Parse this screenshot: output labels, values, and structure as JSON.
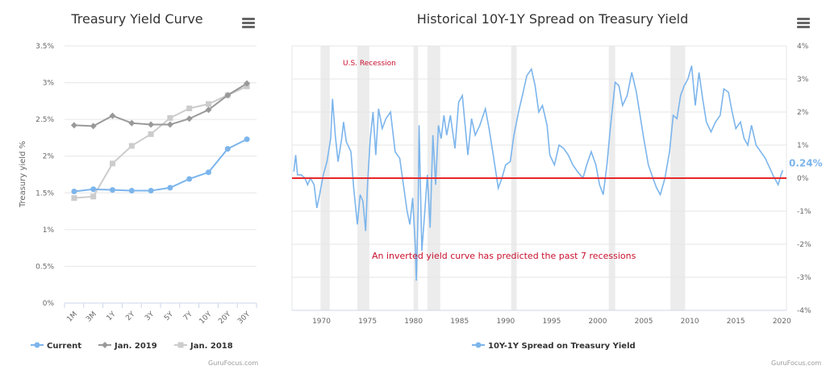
{
  "chart_data": [
    {
      "type": "line",
      "title": "Treasury Yield Curve",
      "ylabel": "Treasury yield %",
      "xlabel": "",
      "ylim": [
        0,
        3.5
      ],
      "yticks": [
        "0%",
        "0.5%",
        "1%",
        "1.5%",
        "2%",
        "2.5%",
        "3%",
        "3.5%"
      ],
      "ytick_values": [
        0,
        0.5,
        1,
        1.5,
        2,
        2.5,
        3,
        3.5
      ],
      "categories": [
        "1M",
        "3M",
        "1Y",
        "2Y",
        "3Y",
        "5Y",
        "7Y",
        "10Y",
        "20Y",
        "30Y"
      ],
      "grid": true,
      "legend": "bottom",
      "series": [
        {
          "name": "Current",
          "color": "#7cb5ec",
          "marker": "circle",
          "values": [
            1.52,
            1.55,
            1.54,
            1.53,
            1.53,
            1.57,
            1.69,
            1.78,
            2.1,
            2.23
          ]
        },
        {
          "name": "Jan. 2019",
          "color": "#999999",
          "marker": "diamond",
          "values": [
            2.42,
            2.41,
            2.55,
            2.45,
            2.43,
            2.43,
            2.51,
            2.63,
            2.83,
            2.99
          ]
        },
        {
          "name": "Jan. 2018",
          "color": "#cccccc",
          "marker": "square",
          "values": [
            1.43,
            1.45,
            1.9,
            2.14,
            2.3,
            2.52,
            2.65,
            2.71,
            2.83,
            2.95
          ]
        }
      ],
      "watermark": "GuruFocus.com"
    },
    {
      "type": "line",
      "title": "Historical 10Y-1Y Spread on Treasury Yield",
      "xlim": [
        1966.8,
        2020.5
      ],
      "ylim": [
        -4,
        4
      ],
      "xticks": [
        1970,
        1975,
        1980,
        1985,
        1990,
        1995,
        2000,
        2005,
        2010,
        2015,
        2020
      ],
      "yticks": [
        "-4%",
        "-3%",
        "-2%",
        "-1%",
        "0%",
        "1%",
        "2%",
        "3%",
        "4%"
      ],
      "ytick_values": [
        -4,
        -3,
        -2,
        -1,
        0,
        1,
        2,
        3,
        4
      ],
      "grid": true,
      "legend": "bottom",
      "last_value_label": "0.24%",
      "recession_label": "U.S. Recession",
      "annotation": "An inverted yield curve has predicted the past 7 recessions",
      "zero_line_color": "#e8262b",
      "recession_color": "#ececec",
      "recessions": [
        [
          1969.9,
          1970.9
        ],
        [
          1973.9,
          1975.2
        ],
        [
          1980.0,
          1980.5
        ],
        [
          1981.5,
          1982.9
        ],
        [
          1990.6,
          1991.2
        ],
        [
          2001.2,
          2001.9
        ],
        [
          2007.9,
          2009.5
        ]
      ],
      "series": [
        {
          "name": "10Y-1Y Spread on Treasury Yield",
          "color": "#7cb5ec",
          "x": [
            1967,
            1967.2,
            1967.4,
            1967.8,
            1968.2,
            1968.5,
            1968.8,
            1969.2,
            1969.5,
            1969.8,
            1970.2,
            1970.6,
            1971,
            1971.2,
            1971.5,
            1971.8,
            1972.2,
            1972.4,
            1972.7,
            1973.2,
            1973.5,
            1973.9,
            1974.2,
            1974.5,
            1974.8,
            1975,
            1975.3,
            1975.6,
            1975.9,
            1976.2,
            1976.6,
            1977,
            1977.5,
            1978,
            1978.5,
            1978.9,
            1979.3,
            1979.6,
            1979.9,
            1980.2,
            1980.3,
            1980.5,
            1980.6,
            1980.9,
            1981.2,
            1981.5,
            1981.8,
            1982.1,
            1982.4,
            1982.7,
            1983,
            1983.3,
            1983.6,
            1984,
            1984.5,
            1984.9,
            1985.3,
            1985.6,
            1985.9,
            1986.3,
            1986.7,
            1987.2,
            1987.8,
            1988.2,
            1988.6,
            1989.2,
            1989.6,
            1990,
            1990.5,
            1990.9,
            1991.4,
            1991.9,
            1992.3,
            1992.8,
            1993.2,
            1993.6,
            1994,
            1994.5,
            1994.8,
            1995.3,
            1995.8,
            1996.3,
            1996.8,
            1997.3,
            1997.8,
            1998.4,
            1998.8,
            1999.3,
            1999.8,
            2000.2,
            2000.6,
            2001,
            2001.4,
            2001.9,
            2002.3,
            2002.7,
            2003.2,
            2003.7,
            2004.2,
            2004.6,
            2005,
            2005.5,
            2006,
            2006.4,
            2006.8,
            2007.3,
            2007.8,
            2008.2,
            2008.6,
            2009,
            2009.4,
            2009.8,
            2010.2,
            2010.6,
            2011,
            2011.4,
            2011.8,
            2012.3,
            2012.8,
            2013.3,
            2013.7,
            2014.2,
            2014.6,
            2015,
            2015.5,
            2015.9,
            2016.3,
            2016.7,
            2017.2,
            2017.7,
            2018.2,
            2018.7,
            2019.1,
            2019.6,
            2019.9,
            2020.1
          ],
          "y": [
            0.2,
            0.7,
            0.1,
            0.1,
            0.0,
            -0.2,
            0.0,
            -0.2,
            -0.9,
            -0.5,
            0.1,
            0.5,
            1.2,
            2.4,
            1.3,
            0.5,
            1.2,
            1.7,
            1.1,
            0.8,
            -0.3,
            -1.4,
            -0.5,
            -0.7,
            -1.6,
            -0.2,
            1.2,
            2.0,
            0.7,
            2.1,
            1.5,
            1.8,
            2.0,
            0.8,
            0.6,
            -0.2,
            -1.0,
            -1.4,
            -0.6,
            -2.1,
            -3.1,
            -1.0,
            1.6,
            -2.2,
            -1.1,
            0.1,
            -1.5,
            1.3,
            -0.2,
            1.6,
            1.2,
            1.9,
            1.3,
            1.9,
            0.9,
            2.3,
            2.5,
            1.6,
            0.7,
            1.8,
            1.3,
            1.6,
            2.1,
            1.5,
            0.8,
            -0.3,
            0.0,
            0.4,
            0.5,
            1.3,
            2.0,
            2.6,
            3.1,
            3.3,
            2.8,
            2.0,
            2.2,
            1.6,
            0.7,
            0.4,
            1.0,
            0.9,
            0.7,
            0.4,
            0.2,
            0.0,
            0.4,
            0.8,
            0.4,
            -0.2,
            -0.5,
            0.4,
            1.6,
            2.9,
            2.8,
            2.2,
            2.5,
            3.2,
            2.6,
            1.9,
            1.2,
            0.4,
            0.0,
            -0.3,
            -0.5,
            0.0,
            0.8,
            1.9,
            1.8,
            2.5,
            2.8,
            3.0,
            3.4,
            2.2,
            3.2,
            2.4,
            1.7,
            1.4,
            1.7,
            1.9,
            2.7,
            2.6,
            2.0,
            1.5,
            1.7,
            1.2,
            1.0,
            1.6,
            1.0,
            0.8,
            0.6,
            0.3,
            0.05,
            -0.2,
            0.1,
            0.24
          ]
        }
      ],
      "watermark": "GuruFocus.com"
    }
  ]
}
